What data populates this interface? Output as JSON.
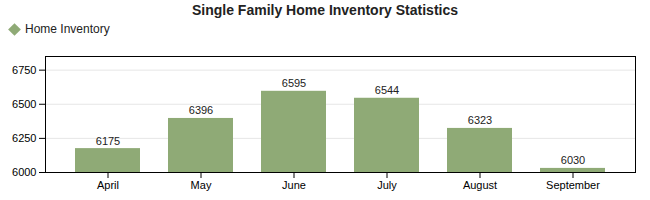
{
  "chart_data": {
    "type": "bar",
    "title": "Single Family Home Inventory Statistics",
    "categories": [
      "April",
      "May",
      "June",
      "July",
      "August",
      "September"
    ],
    "series": [
      {
        "name": "Home Inventory",
        "color": "#8faa76",
        "values": [
          6175,
          6396,
          6595,
          6544,
          6323,
          6030
        ]
      }
    ],
    "ylim": [
      6000,
      6850
    ],
    "yticks": [
      6000,
      6250,
      6500,
      6750
    ],
    "grid": true,
    "legend": "top-left",
    "data_labels": true
  }
}
